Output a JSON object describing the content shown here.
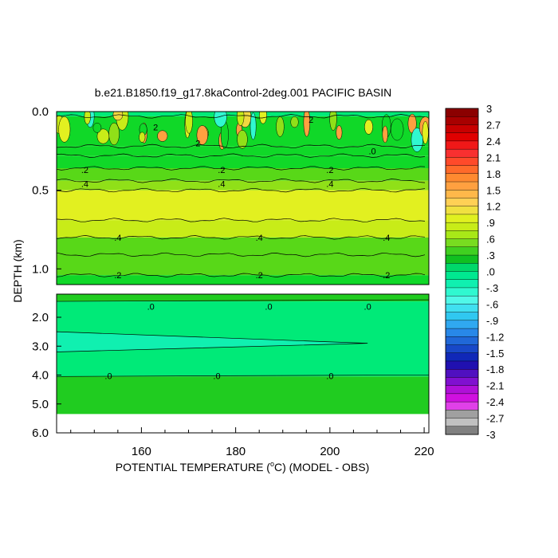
{
  "chart_data": {
    "type": "heatmap",
    "title": "b.e21.B1850.f19_g17.8kaControl-2deg.001 PACIFIC BASIN",
    "xlabel_parts": {
      "pre": "POTENTIAL TEMPERATURE (",
      "sup": "o",
      "post": "C) (MODEL - OBS)"
    },
    "ylabel": "DEPTH (km)",
    "xlim": [
      142,
      221
    ],
    "x_ticks": [
      {
        "value": 160,
        "label": "160"
      },
      {
        "value": 180,
        "label": "180"
      },
      {
        "value": 200,
        "label": "200"
      },
      {
        "value": 220,
        "label": "220"
      }
    ],
    "upper_panel": {
      "ylim": [
        0.0,
        1.1
      ],
      "y_ticks": [
        {
          "value": 0.0,
          "label": "0.0"
        },
        {
          "value": 0.5,
          "label": "0.5"
        },
        {
          "value": 1.0,
          "label": "1.0"
        }
      ],
      "bands": [
        {
          "d0": 0.0,
          "d1": 0.03,
          "value": 0.0
        },
        {
          "d0": 0.03,
          "d1": 0.22,
          "value": 0.15
        },
        {
          "d0": 0.22,
          "d1": 0.28,
          "value": 0.05
        },
        {
          "d0": 0.28,
          "d1": 0.36,
          "value": 0.15
        },
        {
          "d0": 0.36,
          "d1": 0.44,
          "value": 0.3
        },
        {
          "d0": 0.44,
          "d1": 0.5,
          "value": 0.4
        },
        {
          "d0": 0.5,
          "d1": 0.69,
          "value": 0.55
        },
        {
          "d0": 0.69,
          "d1": 0.8,
          "value": 0.45
        },
        {
          "d0": 0.8,
          "d1": 0.91,
          "value": 0.35
        },
        {
          "d0": 0.91,
          "d1": 1.04,
          "value": 0.25
        },
        {
          "d0": 1.04,
          "d1": 1.1,
          "value": 0.15
        }
      ],
      "contours": [
        {
          "d": 0.37,
          "label": ".2",
          "xs": [
            148,
            177,
            200
          ]
        },
        {
          "d": 0.46,
          "label": ".4",
          "xs": [
            148,
            177,
            200
          ]
        },
        {
          "d": 0.8,
          "label": ".4",
          "xs": [
            155,
            185,
            212
          ]
        },
        {
          "d": 1.04,
          "label": ".2",
          "xs": [
            155,
            185,
            212
          ]
        }
      ],
      "surface_labels": [
        {
          "x": 163,
          "d": 0.1,
          "label": "2"
        },
        {
          "x": 172,
          "d": 0.2,
          "label": "2"
        },
        {
          "x": 196,
          "d": 0.05,
          "label": "2"
        },
        {
          "x": 209,
          "d": 0.25,
          "label": ".0"
        }
      ]
    },
    "lower_panel": {
      "ylim": [
        1.2,
        6.0
      ],
      "y_ticks": [
        {
          "value": 2.0,
          "label": "2.0"
        },
        {
          "value": 3.0,
          "label": "3.0"
        },
        {
          "value": 4.0,
          "label": "4.0"
        },
        {
          "value": 5.0,
          "label": "5.0"
        },
        {
          "value": 6.0,
          "label": "6.0"
        }
      ],
      "data_bottom": 5.35,
      "bands": [
        {
          "d0": 1.2,
          "d1": 1.45,
          "value": 0.2
        },
        {
          "d0": 1.45,
          "d1": 4.05,
          "value": 0.0
        },
        {
          "d0": 4.05,
          "d1": 5.35,
          "value": 0.2
        }
      ],
      "wedge_value": -0.15,
      "contours": [
        {
          "d": 1.6,
          "label": ".0",
          "xs": [
            162,
            187,
            208
          ]
        },
        {
          "d": 4.0,
          "label": ".0",
          "xs": [
            153,
            176,
            200
          ]
        }
      ]
    },
    "colorbar": {
      "labels": [
        "3",
        "2.7",
        "2.4",
        "2.1",
        "1.8",
        "1.5",
        "1.2",
        ".9",
        ".6",
        ".3",
        ".0",
        "-.3",
        "-.6",
        "-.9",
        "-1.2",
        "-1.5",
        "-1.8",
        "-2.1",
        "-2.4",
        "-2.7",
        "-3"
      ],
      "colors": [
        "#8b0000",
        "#a80000",
        "#c80000",
        "#e00000",
        "#f01818",
        "#f83030",
        "#ff4a2a",
        "#ff6a2a",
        "#ff8a30",
        "#ffa040",
        "#ffb84a",
        "#ffd055",
        "#f0e040",
        "#e0f020",
        "#c8ec18",
        "#a8e818",
        "#78dc20",
        "#40d020",
        "#10c020",
        "#00d86a",
        "#00e890",
        "#10f0b0",
        "#30f8d0",
        "#50f8e8",
        "#40e0f0",
        "#30c8f0",
        "#30a8f0",
        "#2888e8",
        "#2068d8",
        "#1848c8",
        "#1028b8",
        "#2010b0",
        "#5010c0",
        "#8010d0",
        "#b010d8",
        "#d010e0",
        "#e040e8",
        "#a0a0a0",
        "#c0c0c0",
        "#808080"
      ]
    }
  }
}
